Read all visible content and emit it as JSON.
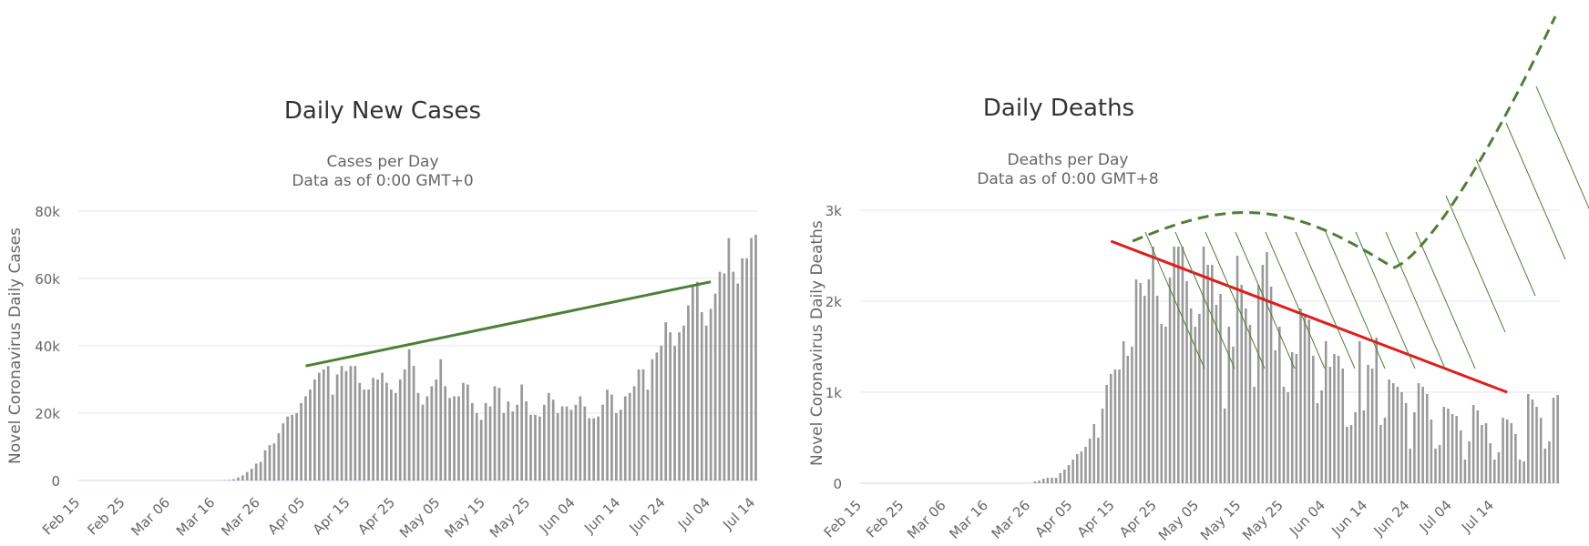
{
  "chart_data": [
    {
      "type": "bar",
      "title": "Daily New Cases",
      "subtitle": [
        "Cases per Day",
        "Data as of 0:00 GMT+0"
      ],
      "ylabel": "Novel Coronavirus Daily Cases",
      "xlabel": "",
      "x_tick_labels": [
        "Feb 15",
        "Feb 25",
        "Mar 06",
        "Mar 16",
        "Mar 26",
        "Apr 05",
        "Apr 15",
        "Apr 25",
        "May 05",
        "May 15",
        "May 25",
        "Jun 04",
        "Jun 14",
        "Jun 24",
        "Jul 04",
        "Jul 14"
      ],
      "y_tick_labels": [
        "0",
        "20k",
        "40k",
        "60k",
        "80k"
      ],
      "ylim": [
        0,
        80000
      ],
      "first_date": "Feb 15",
      "last_date": "Jul 17",
      "grid": true,
      "bar_color": "#999999",
      "values": [
        0,
        0,
        0,
        0,
        0,
        0,
        0,
        0,
        0,
        0,
        0,
        0,
        0,
        0,
        0,
        0,
        0,
        0,
        0,
        0,
        0,
        0,
        0,
        0,
        0,
        0,
        0,
        0,
        0,
        0,
        0,
        0,
        100,
        200,
        400,
        900,
        1500,
        2500,
        3500,
        5000,
        5500,
        9000,
        10500,
        11000,
        14000,
        17000,
        19000,
        19500,
        20000,
        23000,
        25000,
        27000,
        30000,
        32000,
        33000,
        34000,
        25500,
        31500,
        34000,
        32500,
        34000,
        34000,
        29000,
        27000,
        27000,
        30500,
        30000,
        32000,
        29000,
        27000,
        26000,
        30000,
        33000,
        39000,
        34000,
        26000,
        22500,
        25000,
        28000,
        30000,
        36000,
        28000,
        24500,
        25000,
        25000,
        29000,
        28500,
        23000,
        20000,
        18000,
        23000,
        22000,
        28000,
        27500,
        20000,
        23500,
        20500,
        22500,
        28500,
        23500,
        19500,
        19500,
        19000,
        22500,
        26000,
        24000,
        20000,
        22000,
        22000,
        21000,
        22500,
        25000,
        22000,
        18500,
        18500,
        19000,
        22500,
        27000,
        25500,
        20000,
        21000,
        25000,
        26000,
        28000,
        33000,
        33000,
        27000,
        36000,
        38000,
        40000,
        47000,
        44000,
        40000,
        44000,
        46000,
        52000,
        58000,
        59000,
        50000,
        46000,
        51000,
        55500,
        62000,
        61500,
        72000,
        62000,
        58500,
        66000,
        66000,
        72000,
        73000
      ],
      "annotations": [
        {
          "type": "trend-line",
          "color": "#4f7f35",
          "from": [
            "Apr 05",
            34000
          ],
          "to": [
            "Jul 04",
            59000
          ]
        }
      ]
    },
    {
      "type": "bar",
      "title": "Daily Deaths",
      "subtitle": [
        "Deaths per Day",
        "Data as of 0:00 GMT+8"
      ],
      "ylabel": "Novel Coronavirus Daily Deaths",
      "xlabel": "",
      "x_tick_labels": [
        "Feb 15",
        "Feb 25",
        "Mar 06",
        "Mar 16",
        "Mar 26",
        "Apr 05",
        "Apr 15",
        "Apr 25",
        "May 05",
        "May 15",
        "May 25",
        "Jun 04",
        "Jun 14",
        "Jun 24",
        "Jul 04",
        "Jul 14"
      ],
      "y_tick_labels": [
        "0",
        "1k",
        "2k",
        "3k"
      ],
      "ylim": [
        0,
        3000
      ],
      "first_date": "Feb 15",
      "last_date": "Jul 17",
      "grid": true,
      "bar_color": "#999999",
      "values": [
        0,
        0,
        0,
        0,
        0,
        0,
        0,
        0,
        0,
        0,
        0,
        0,
        0,
        0,
        0,
        0,
        0,
        0,
        0,
        0,
        0,
        0,
        0,
        0,
        0,
        0,
        0,
        0,
        0,
        0,
        0,
        0,
        0,
        0,
        0,
        0,
        0,
        0,
        0,
        0,
        0,
        20,
        30,
        50,
        60,
        60,
        60,
        110,
        150,
        200,
        260,
        320,
        350,
        400,
        490,
        650,
        500,
        820,
        1080,
        1200,
        1250,
        1250,
        1560,
        1400,
        1500,
        2240,
        2200,
        2060,
        2240,
        2600,
        2060,
        1750,
        1720,
        2260,
        2600,
        2600,
        2600,
        2220,
        1920,
        1720,
        1860,
        2600,
        2400,
        2400,
        1960,
        2080,
        820,
        1720,
        1500,
        2500,
        2180,
        1920,
        1740,
        1060,
        2180,
        2400,
        2540,
        2160,
        1460,
        1720,
        1060,
        1000,
        1440,
        1420,
        1920,
        1860,
        1800,
        1400,
        880,
        1020,
        1560,
        1280,
        1420,
        1400,
        1260,
        620,
        640,
        780,
        1560,
        800,
        1300,
        1260,
        1600,
        640,
        720,
        1140,
        1100,
        1060,
        1000,
        880,
        380,
        780,
        1100,
        1060,
        980,
        700,
        380,
        420,
        840,
        820,
        760,
        740,
        580,
        260,
        460,
        860,
        800,
        640,
        660,
        440,
        260,
        340,
        720,
        700,
        660,
        540,
        260,
        240,
        980,
        920,
        840,
        720,
        380,
        460,
        940,
        970
      ],
      "annotations": [
        {
          "type": "trend-line",
          "color": "#e21b1b",
          "from": [
            "Apr 14",
            2660
          ],
          "to": [
            "Jul 17",
            1000
          ]
        },
        {
          "type": "dashed-curve",
          "color": "#4f7f35",
          "description": "hatched projection band rising to the top-right"
        }
      ]
    }
  ]
}
